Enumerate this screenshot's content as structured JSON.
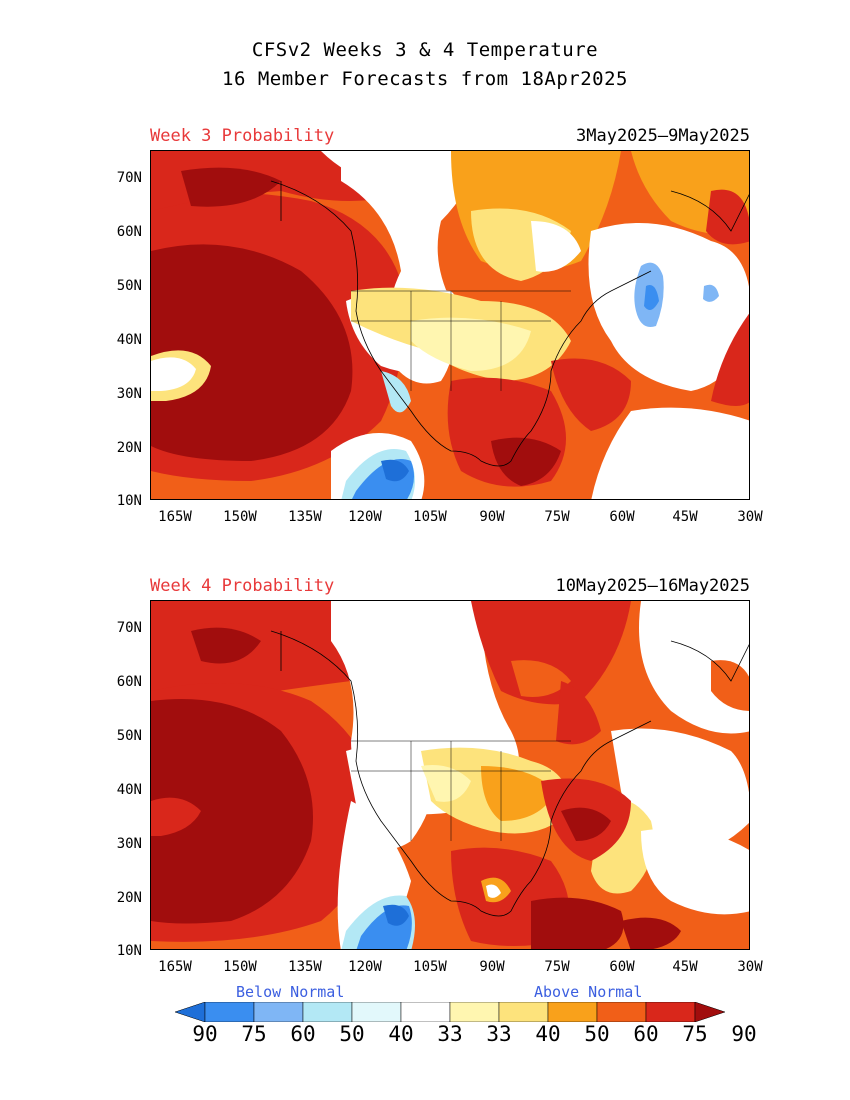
{
  "header": {
    "line1": "CFSv2 Weeks 3 & 4 Temperature",
    "line2": "16 Member Forecasts from 18Apr2025"
  },
  "panels": [
    {
      "label": "Week 3 Probability",
      "dates": "3May2025–9May2025"
    },
    {
      "label": "Week 4 Probability",
      "dates": "10May2025–16May2025"
    }
  ],
  "axes": {
    "lat_labels": [
      "70N",
      "60N",
      "50N",
      "40N",
      "30N",
      "20N",
      "10N"
    ],
    "lon_labels": [
      "165W",
      "150W",
      "135W",
      "120W",
      "105W",
      "90W",
      "75W",
      "60W",
      "45W",
      "30W"
    ]
  },
  "legend": {
    "below": "Below Normal",
    "above": "Above Normal",
    "ticks": [
      "90",
      "75",
      "60",
      "50",
      "40",
      "33",
      "33",
      "40",
      "50",
      "60",
      "75",
      "90"
    ],
    "colors": [
      "#1e6fd8",
      "#3a8ef0",
      "#7fb6f5",
      "#b3e8f5",
      "#e2f8fb",
      "#ffffff",
      "#fff6b0",
      "#fde37c",
      "#f9a11b",
      "#f15f18",
      "#d9271b",
      "#a10d0d"
    ]
  },
  "palette": {
    "above_dark": "#a10d0d",
    "above_red": "#d9271b",
    "above_orange_red": "#f15f18",
    "above_orange": "#f9a11b",
    "above_yellow": "#fde37c",
    "above_pale": "#fff6b0",
    "below_light": "#b3e8f5",
    "below_mid": "#7fb6f5",
    "below_blue": "#3a8ef0",
    "below_dark": "#1e6fd8"
  }
}
